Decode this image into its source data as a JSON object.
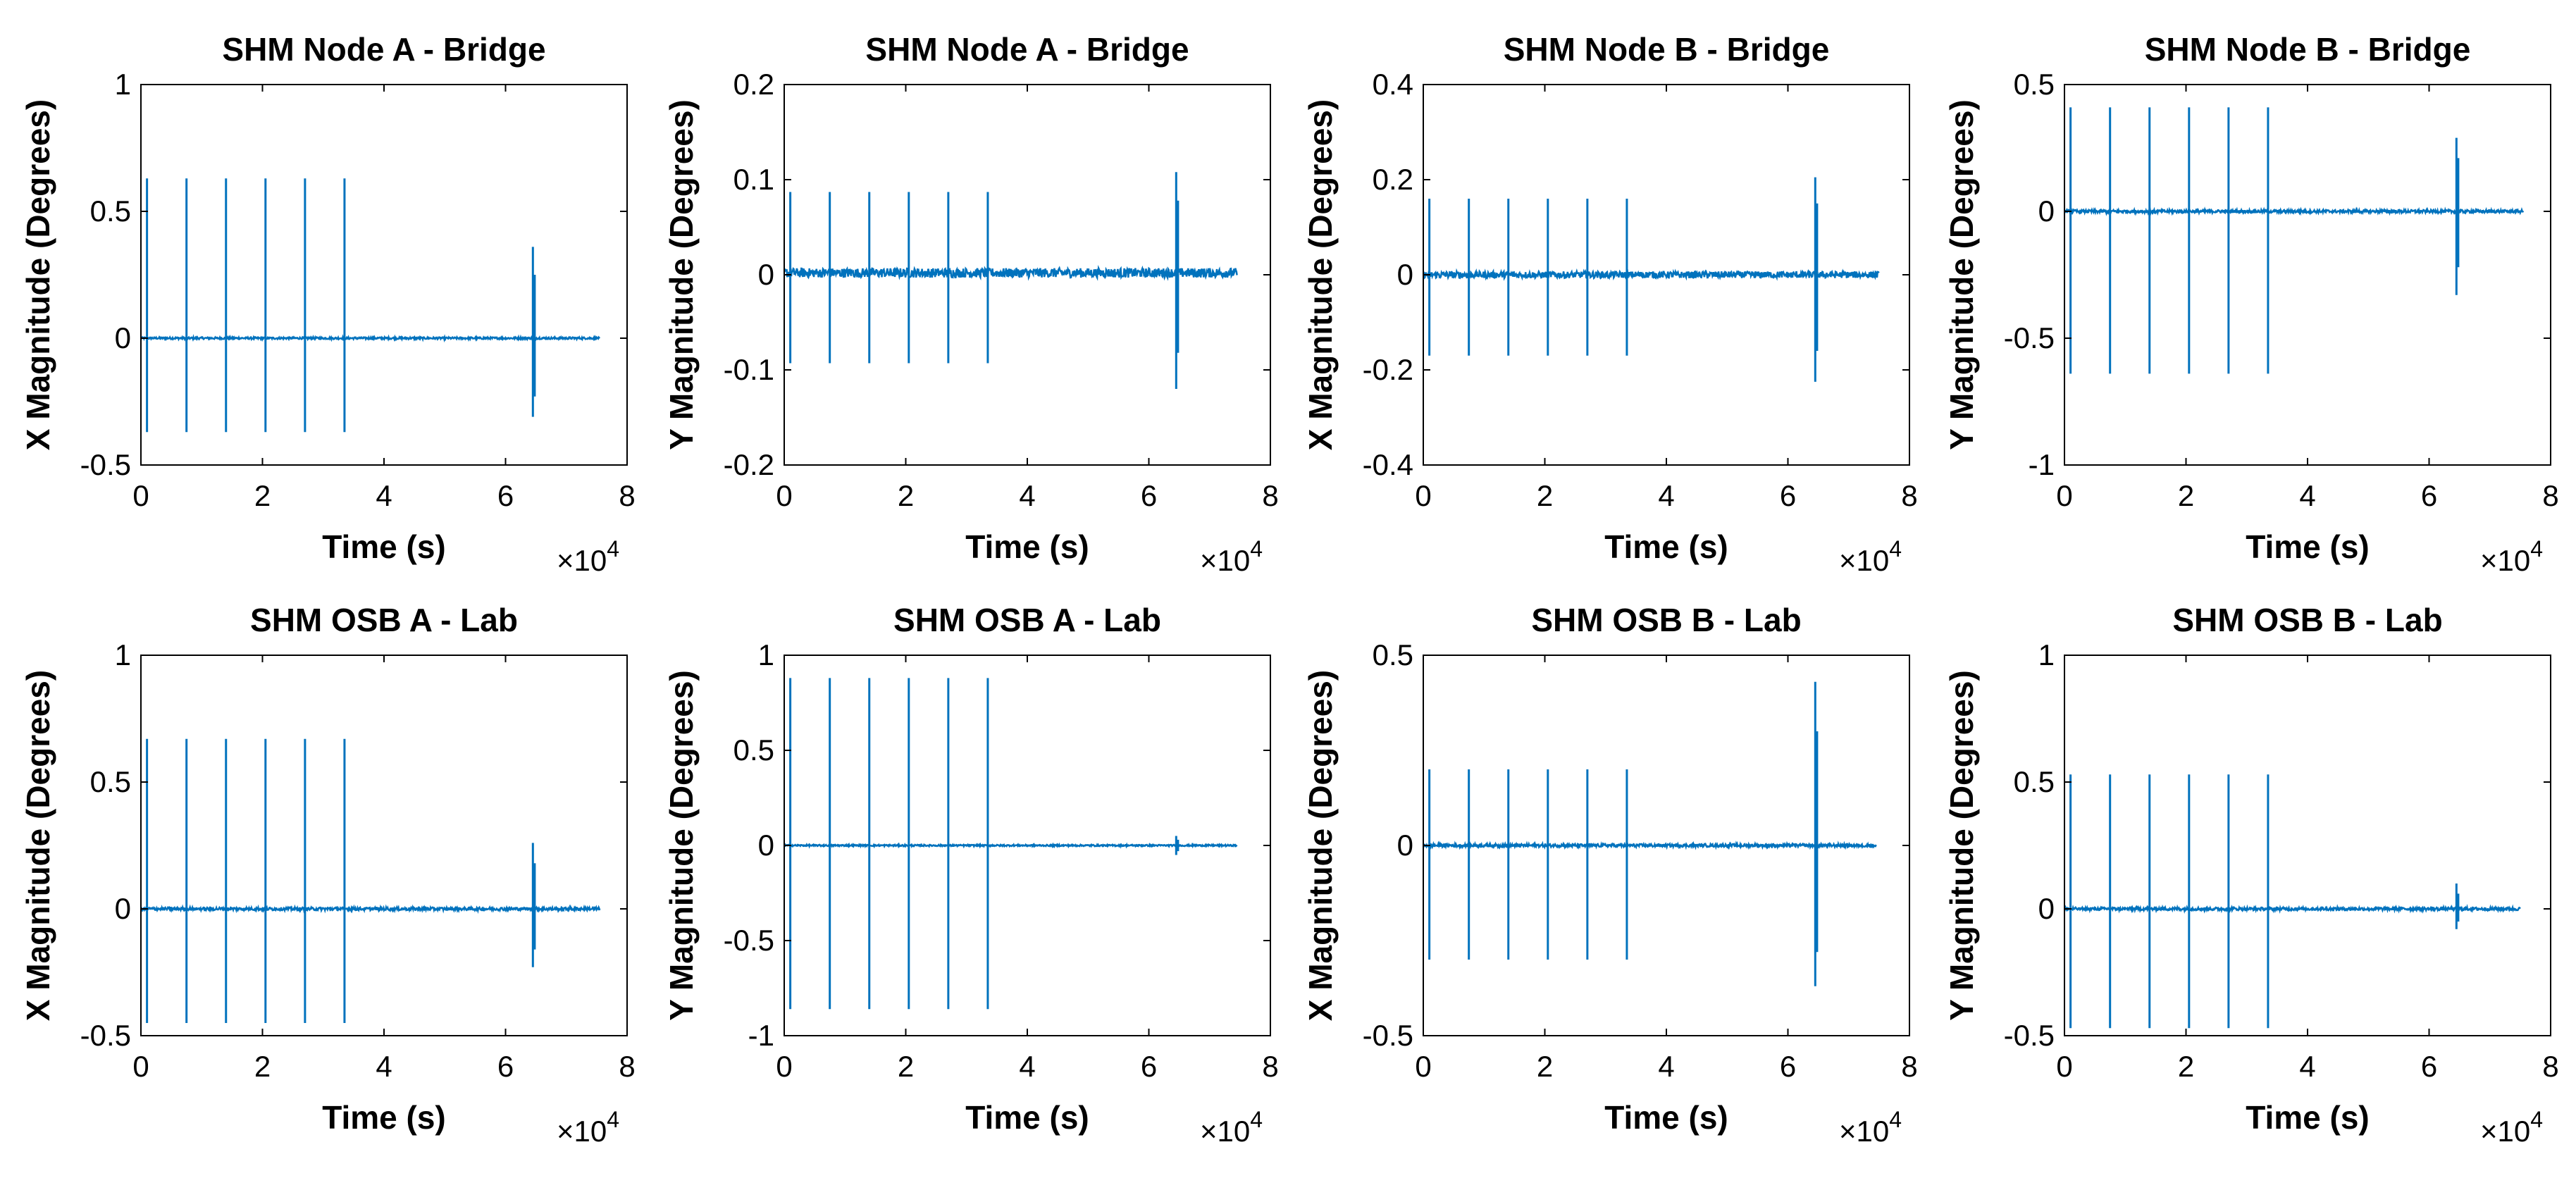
{
  "colors": {
    "series": "#0072BD",
    "axes": "#000000",
    "background": "#ffffff"
  },
  "chart_data": [
    {
      "type": "line",
      "title": "SHM Node A - Bridge",
      "xlabel": "Time (s)",
      "ylabel": "X Magnitude (Degrees)",
      "xlim": [
        0,
        8
      ],
      "ylim": [
        -0.5,
        1
      ],
      "xticks": [
        "0",
        "2",
        "4",
        "6",
        "8"
      ],
      "yticks": [
        "-0.5",
        "0",
        "0.5",
        "1"
      ],
      "x_multiplier_base": "×10",
      "x_multiplier_exp": "4",
      "x_end": 7.55,
      "baseline": 0.0,
      "noise": 0.004,
      "spikes": [
        {
          "x": 0.1,
          "max": 0.63,
          "min": -0.37
        },
        {
          "x": 0.75,
          "max": 0.63,
          "min": -0.37
        },
        {
          "x": 1.4,
          "max": 0.63,
          "min": -0.37
        },
        {
          "x": 2.05,
          "max": 0.63,
          "min": -0.37
        },
        {
          "x": 2.7,
          "max": 0.63,
          "min": -0.37
        },
        {
          "x": 3.35,
          "max": 0.63,
          "min": -0.37
        },
        {
          "x": 6.45,
          "max": 0.36,
          "min": -0.31
        },
        {
          "x": 6.48,
          "max": 0.25,
          "min": -0.23
        }
      ]
    },
    {
      "type": "line",
      "title": "SHM Node A - Bridge",
      "xlabel": "Time (s)",
      "ylabel": "Y Magnitude (Degrees)",
      "xlim": [
        0,
        8
      ],
      "ylim": [
        -0.2,
        0.2
      ],
      "xticks": [
        "0",
        "2",
        "4",
        "6",
        "8"
      ],
      "yticks": [
        "-0.2",
        "-0.1",
        "0",
        "0.1",
        "0.2"
      ],
      "x_multiplier_base": "×10",
      "x_multiplier_exp": "4",
      "x_end": 7.45,
      "baseline": 0.002,
      "noise": 0.005,
      "spikes": [
        {
          "x": 0.1,
          "max": 0.087,
          "min": -0.093
        },
        {
          "x": 0.75,
          "max": 0.087,
          "min": -0.093
        },
        {
          "x": 1.4,
          "max": 0.087,
          "min": -0.093
        },
        {
          "x": 2.05,
          "max": 0.087,
          "min": -0.093
        },
        {
          "x": 2.7,
          "max": 0.087,
          "min": -0.093
        },
        {
          "x": 3.35,
          "max": 0.087,
          "min": -0.093
        },
        {
          "x": 6.45,
          "max": 0.108,
          "min": -0.12
        },
        {
          "x": 6.48,
          "max": 0.078,
          "min": -0.082
        }
      ]
    },
    {
      "type": "line",
      "title": "SHM Node B - Bridge",
      "xlabel": "Time (s)",
      "ylabel": "X Magnitude (Degrees)",
      "xlim": [
        0,
        8
      ],
      "ylim": [
        -0.4,
        0.4
      ],
      "xticks": [
        "0",
        "2",
        "4",
        "6",
        "8"
      ],
      "yticks": [
        "-0.4",
        "-0.2",
        "0",
        "0.2",
        "0.4"
      ],
      "x_multiplier_base": "×10",
      "x_multiplier_exp": "4",
      "x_end": 7.5,
      "baseline": 0.0,
      "noise": 0.007,
      "spikes": [
        {
          "x": 0.1,
          "max": 0.16,
          "min": -0.17
        },
        {
          "x": 0.75,
          "max": 0.16,
          "min": -0.17
        },
        {
          "x": 1.4,
          "max": 0.16,
          "min": -0.17
        },
        {
          "x": 2.05,
          "max": 0.16,
          "min": -0.17
        },
        {
          "x": 2.7,
          "max": 0.16,
          "min": -0.17
        },
        {
          "x": 3.35,
          "max": 0.16,
          "min": -0.17
        },
        {
          "x": 6.45,
          "max": 0.205,
          "min": -0.225
        },
        {
          "x": 6.48,
          "max": 0.15,
          "min": -0.16
        }
      ]
    },
    {
      "type": "line",
      "title": "SHM Node B - Bridge",
      "xlabel": "Time (s)",
      "ylabel": "Y Magnitude (Degrees)",
      "xlim": [
        0,
        8
      ],
      "ylim": [
        -1,
        0.5
      ],
      "xticks": [
        "0",
        "2",
        "4",
        "6",
        "8"
      ],
      "yticks": [
        "-1",
        "-0.5",
        "0",
        "0.5"
      ],
      "x_multiplier_base": "×10",
      "x_multiplier_exp": "4",
      "x_end": 7.55,
      "baseline": 0.0,
      "noise": 0.006,
      "spikes": [
        {
          "x": 0.1,
          "max": 0.41,
          "min": -0.64
        },
        {
          "x": 0.75,
          "max": 0.41,
          "min": -0.64
        },
        {
          "x": 1.4,
          "max": 0.41,
          "min": -0.64
        },
        {
          "x": 2.05,
          "max": 0.41,
          "min": -0.64
        },
        {
          "x": 2.7,
          "max": 0.41,
          "min": -0.64
        },
        {
          "x": 3.35,
          "max": 0.41,
          "min": -0.64
        },
        {
          "x": 6.45,
          "max": 0.29,
          "min": -0.33
        },
        {
          "x": 6.48,
          "max": 0.21,
          "min": -0.22
        }
      ]
    },
    {
      "type": "line",
      "title": "SHM OSB A - Lab",
      "xlabel": "Time (s)",
      "ylabel": "X Magnitude (Degrees)",
      "xlim": [
        0,
        8
      ],
      "ylim": [
        -0.5,
        1
      ],
      "xticks": [
        "0",
        "2",
        "4",
        "6",
        "8"
      ],
      "yticks": [
        "-0.5",
        "0",
        "0.5",
        "1"
      ],
      "x_multiplier_base": "×10",
      "x_multiplier_exp": "4",
      "x_end": 7.55,
      "baseline": 0.0,
      "noise": 0.006,
      "spikes": [
        {
          "x": 0.1,
          "max": 0.67,
          "min": -0.45
        },
        {
          "x": 0.75,
          "max": 0.67,
          "min": -0.45
        },
        {
          "x": 1.4,
          "max": 0.67,
          "min": -0.45
        },
        {
          "x": 2.05,
          "max": 0.67,
          "min": -0.45
        },
        {
          "x": 2.7,
          "max": 0.67,
          "min": -0.45
        },
        {
          "x": 3.35,
          "max": 0.67,
          "min": -0.45
        },
        {
          "x": 6.45,
          "max": 0.26,
          "min": -0.23
        },
        {
          "x": 6.48,
          "max": 0.18,
          "min": -0.16
        }
      ]
    },
    {
      "type": "line",
      "title": "SHM OSB A - Lab",
      "xlabel": "Time (s)",
      "ylabel": "Y Magnitude (Degrees)",
      "xlim": [
        0,
        8
      ],
      "ylim": [
        -1,
        1
      ],
      "xticks": [
        "0",
        "2",
        "4",
        "6",
        "8"
      ],
      "yticks": [
        "-1",
        "-0.5",
        "0",
        "0.5",
        "1"
      ],
      "x_multiplier_base": "×10",
      "x_multiplier_exp": "4",
      "x_end": 7.45,
      "baseline": 0.0,
      "noise": 0.004,
      "spikes": [
        {
          "x": 0.1,
          "max": 0.88,
          "min": -0.86
        },
        {
          "x": 0.75,
          "max": 0.88,
          "min": -0.86
        },
        {
          "x": 1.4,
          "max": 0.88,
          "min": -0.86
        },
        {
          "x": 2.05,
          "max": 0.88,
          "min": -0.86
        },
        {
          "x": 2.7,
          "max": 0.88,
          "min": -0.86
        },
        {
          "x": 3.35,
          "max": 0.88,
          "min": -0.86
        },
        {
          "x": 6.45,
          "max": 0.05,
          "min": -0.05
        },
        {
          "x": 6.48,
          "max": 0.03,
          "min": -0.03
        }
      ]
    },
    {
      "type": "line",
      "title": "SHM OSB B - Lab",
      "xlabel": "Time (s)",
      "ylabel": "X Magnitude (Degrees)",
      "xlim": [
        0,
        8
      ],
      "ylim": [
        -0.5,
        0.5
      ],
      "xticks": [
        "0",
        "2",
        "4",
        "6",
        "8"
      ],
      "yticks": [
        "-0.5",
        "0",
        "0.5"
      ],
      "x_multiplier_base": "×10",
      "x_multiplier_exp": "4",
      "x_end": 7.45,
      "baseline": 0.0,
      "noise": 0.004,
      "spikes": [
        {
          "x": 0.1,
          "max": 0.2,
          "min": -0.3
        },
        {
          "x": 0.75,
          "max": 0.2,
          "min": -0.3
        },
        {
          "x": 1.4,
          "max": 0.2,
          "min": -0.3
        },
        {
          "x": 2.05,
          "max": 0.2,
          "min": -0.3
        },
        {
          "x": 2.7,
          "max": 0.2,
          "min": -0.3
        },
        {
          "x": 3.35,
          "max": 0.2,
          "min": -0.3
        },
        {
          "x": 6.45,
          "max": 0.43,
          "min": -0.37
        },
        {
          "x": 6.48,
          "max": 0.3,
          "min": -0.28
        }
      ]
    },
    {
      "type": "line",
      "title": "SHM OSB B - Lab",
      "xlabel": "Time (s)",
      "ylabel": "Y Magnitude (Degrees)",
      "xlim": [
        0,
        8
      ],
      "ylim": [
        -0.5,
        1
      ],
      "xticks": [
        "0",
        "2",
        "4",
        "6",
        "8"
      ],
      "yticks": [
        "-0.5",
        "0",
        "0.5",
        "1"
      ],
      "x_multiplier_base": "×10",
      "x_multiplier_exp": "4",
      "x_end": 7.5,
      "baseline": 0.0,
      "noise": 0.006,
      "spikes": [
        {
          "x": 0.1,
          "max": 0.53,
          "min": -0.47
        },
        {
          "x": 0.75,
          "max": 0.53,
          "min": -0.47
        },
        {
          "x": 1.4,
          "max": 0.53,
          "min": -0.47
        },
        {
          "x": 2.05,
          "max": 0.53,
          "min": -0.47
        },
        {
          "x": 2.7,
          "max": 0.53,
          "min": -0.47
        },
        {
          "x": 3.35,
          "max": 0.53,
          "min": -0.47
        },
        {
          "x": 6.45,
          "max": 0.1,
          "min": -0.08
        },
        {
          "x": 6.48,
          "max": 0.06,
          "min": -0.05
        }
      ]
    }
  ]
}
